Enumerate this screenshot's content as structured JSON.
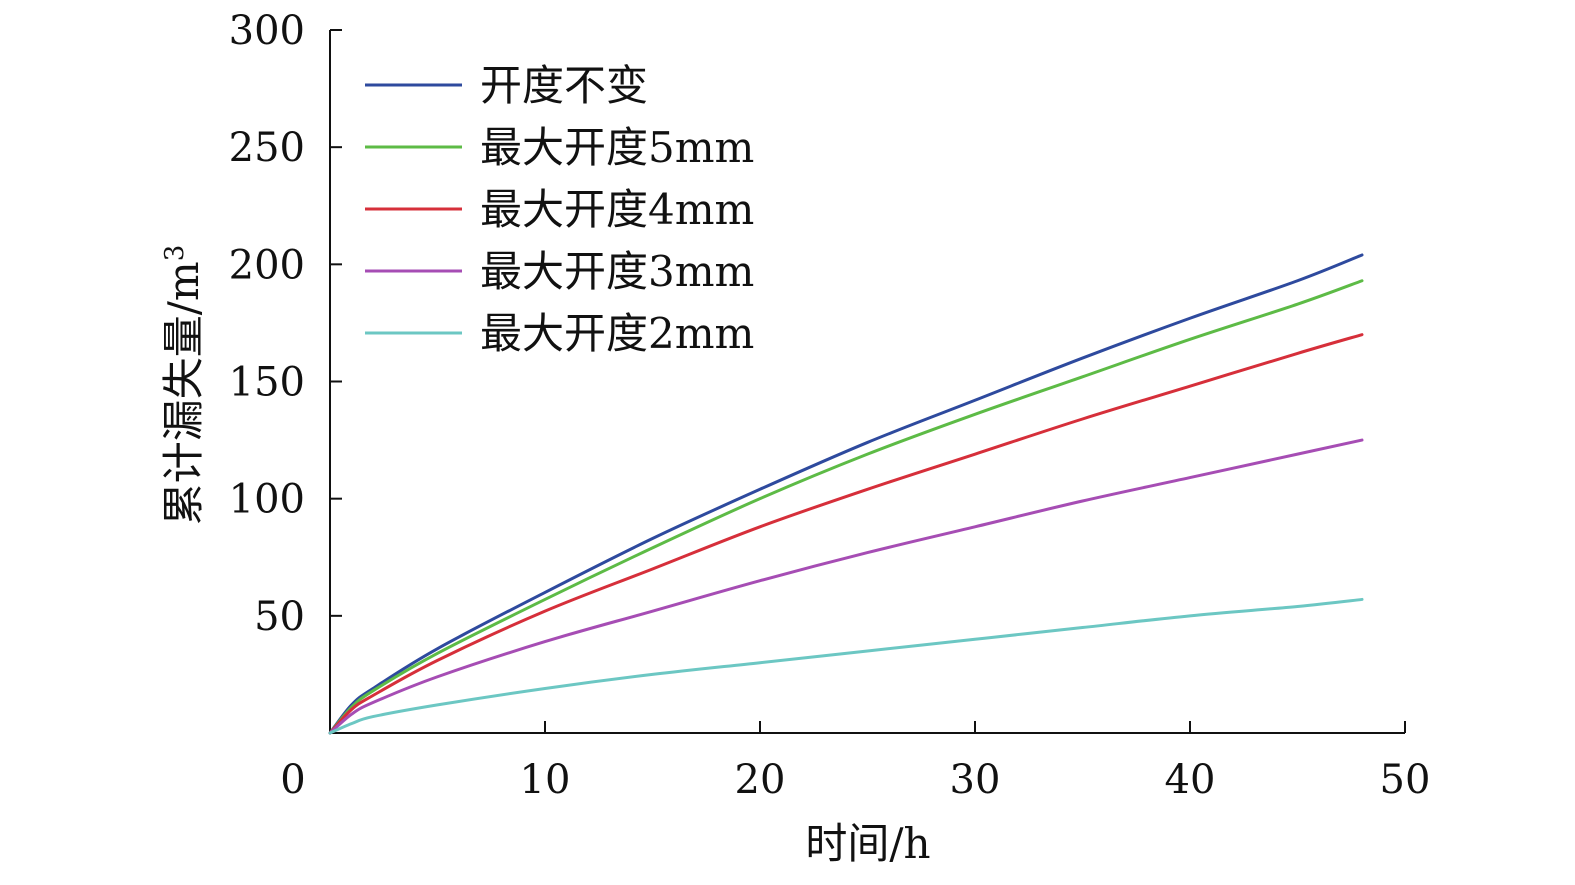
{
  "chart_data": {
    "type": "line",
    "xlabel": "时间/h",
    "ylabel": "累计漏失量/m",
    "ylabel_sup": "3",
    "xlim": [
      0,
      50
    ],
    "ylim": [
      0,
      300
    ],
    "xticks": [
      10,
      20,
      30,
      40,
      50
    ],
    "yticks": [
      50,
      100,
      150,
      200,
      250,
      300
    ],
    "origin_label": "0",
    "grid": false,
    "legend_position": "top-left",
    "series": [
      {
        "name": "开度不变",
        "color": "#2E4A9E",
        "x": [
          0,
          1,
          2,
          5,
          10,
          15,
          20,
          25,
          30,
          35,
          40,
          45,
          48
        ],
        "y": [
          0,
          12,
          19,
          36,
          60,
          83,
          104,
          124,
          142,
          160,
          177,
          193,
          204
        ]
      },
      {
        "name": "最大开度5mm",
        "color": "#5DBB46",
        "x": [
          0,
          1,
          2,
          5,
          10,
          15,
          20,
          25,
          30,
          35,
          40,
          45,
          48
        ],
        "y": [
          0,
          11,
          18,
          34,
          57,
          79,
          100,
          119,
          136,
          152,
          168,
          183,
          193
        ]
      },
      {
        "name": "最大开度4mm",
        "color": "#D62F3A",
        "x": [
          0,
          1,
          2,
          5,
          10,
          15,
          20,
          25,
          30,
          35,
          40,
          45,
          48
        ],
        "y": [
          0,
          10,
          16,
          31,
          52,
          70,
          88,
          104,
          119,
          134,
          148,
          162,
          170
        ]
      },
      {
        "name": "最大开度3mm",
        "color": "#A64DB4",
        "x": [
          0,
          1,
          2,
          5,
          10,
          15,
          20,
          25,
          30,
          35,
          40,
          45,
          48
        ],
        "y": [
          0,
          8,
          13,
          24,
          39,
          52,
          65,
          77,
          88,
          99,
          109,
          119,
          125
        ]
      },
      {
        "name": "最大开度2mm",
        "color": "#6CC7C3",
        "x": [
          0,
          1,
          2,
          5,
          10,
          15,
          20,
          25,
          30,
          35,
          40,
          45,
          48
        ],
        "y": [
          0,
          4,
          7,
          12,
          19,
          25,
          30,
          35,
          40,
          45,
          50,
          54,
          57
        ]
      }
    ]
  }
}
